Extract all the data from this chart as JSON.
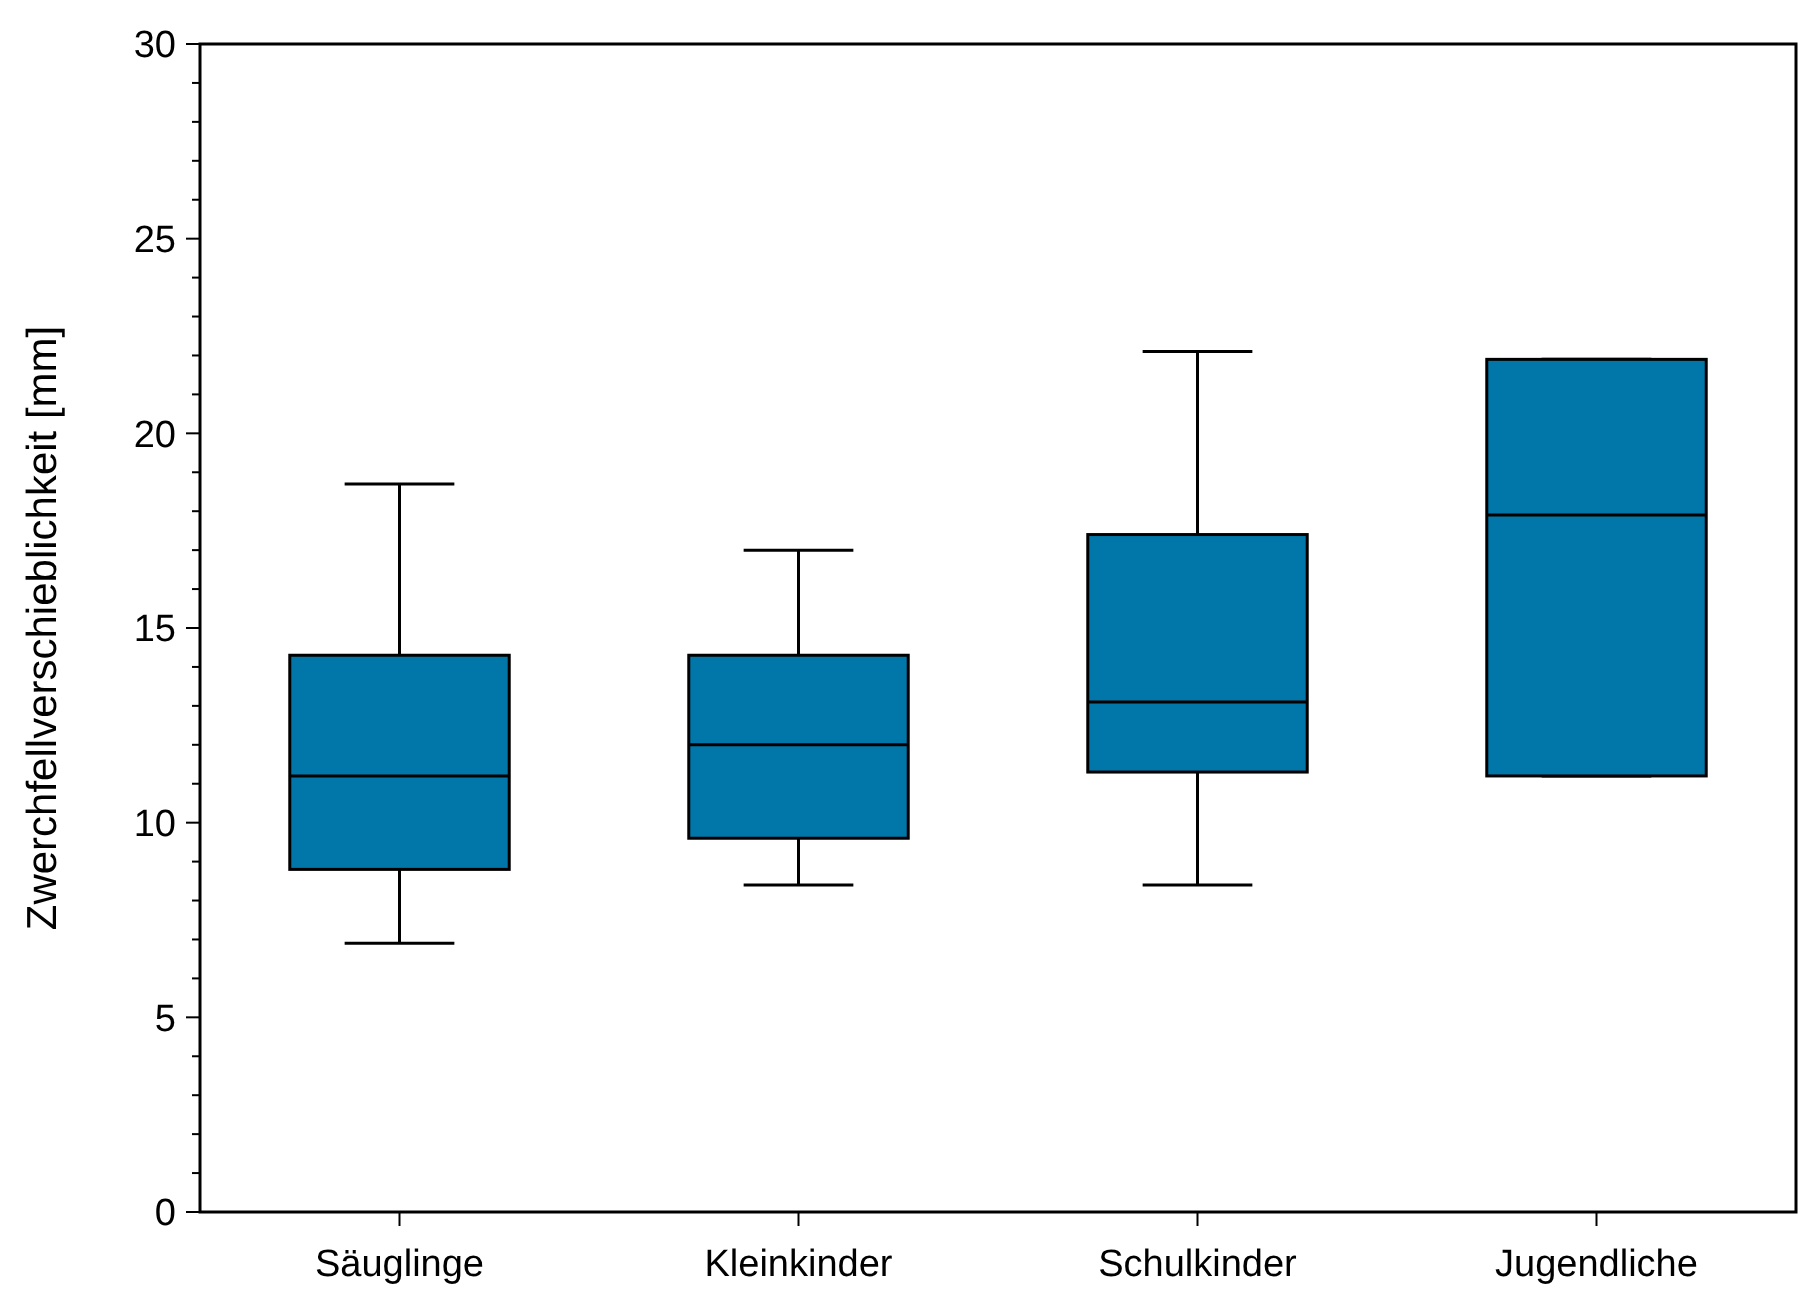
{
  "chart_data": {
    "type": "box",
    "ylabel": "Zwerchfellverschieblichkeit [mm]",
    "categories": [
      "Säuglinge",
      "Kleinkinder",
      "Schulkinder",
      "Jugendliche"
    ],
    "color": "#0077a8",
    "boxes": [
      {
        "low": 6.9,
        "q1": 8.8,
        "median": 11.2,
        "q3": 14.3,
        "high": 18.7
      },
      {
        "low": 8.4,
        "q1": 9.6,
        "median": 12.0,
        "q3": 14.3,
        "high": 17.0
      },
      {
        "low": 8.4,
        "q1": 11.3,
        "median": 13.1,
        "q3": 17.4,
        "high": 22.1
      },
      {
        "low": 11.2,
        "q1": 11.2,
        "median": 17.9,
        "q3": 21.9,
        "high": 21.9
      }
    ],
    "ylim": [
      0,
      30
    ],
    "yticks": [
      0,
      {
        "value": 1,
        "label": null
      },
      {
        "value": 2,
        "label": null
      },
      {
        "value": 3,
        "label": null
      },
      {
        "value": 4,
        "label": null
      },
      5,
      {
        "value": 6,
        "label": null
      },
      {
        "value": 7,
        "label": null
      },
      {
        "value": 8,
        "label": null
      },
      {
        "value": 9,
        "label": null
      },
      10,
      {
        "value": 11,
        "label": null
      },
      {
        "value": 12,
        "label": null
      },
      {
        "value": 13,
        "label": null
      },
      {
        "value": 14,
        "label": null
      },
      15,
      {
        "value": 16,
        "label": null
      },
      {
        "value": 17,
        "label": null
      },
      {
        "value": 18,
        "label": null
      },
      {
        "value": 19,
        "label": null
      },
      20,
      {
        "value": 21,
        "label": null
      },
      {
        "value": 22,
        "label": null
      },
      {
        "value": 23,
        "label": null
      },
      {
        "value": 24,
        "label": null
      },
      25,
      {
        "value": 26,
        "label": null
      },
      {
        "value": 27,
        "label": null
      },
      {
        "value": 28,
        "label": null
      },
      {
        "value": 29,
        "label": null
      },
      30
    ]
  }
}
